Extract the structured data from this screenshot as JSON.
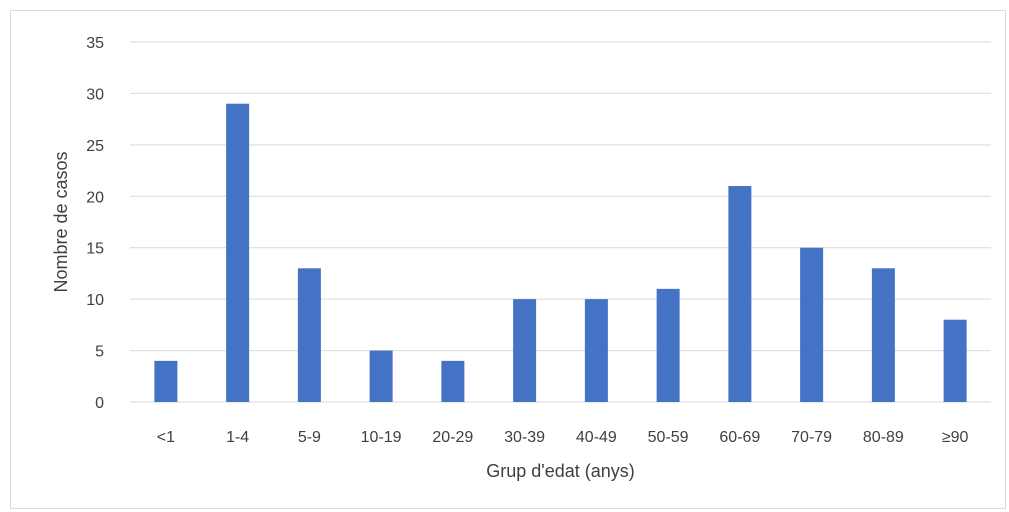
{
  "chart_data": {
    "type": "bar",
    "title": "",
    "xlabel": "Grup d'edat (anys)",
    "ylabel": "Nombre de casos",
    "categories": [
      "<1",
      "1-4",
      "5-9",
      "10-19",
      "20-29",
      "30-39",
      "40-49",
      "50-59",
      "60-69",
      "70-79",
      "80-89",
      "≥90"
    ],
    "values": [
      4,
      29,
      13,
      5,
      4,
      10,
      10,
      11,
      21,
      15,
      13,
      8
    ],
    "ylim": [
      0,
      35
    ],
    "yticks": [
      0,
      5,
      10,
      15,
      20,
      25,
      30,
      35
    ],
    "grid": true,
    "legend": "none",
    "bar_color": "#4472c4",
    "grid_color": "#d9d9d9"
  }
}
